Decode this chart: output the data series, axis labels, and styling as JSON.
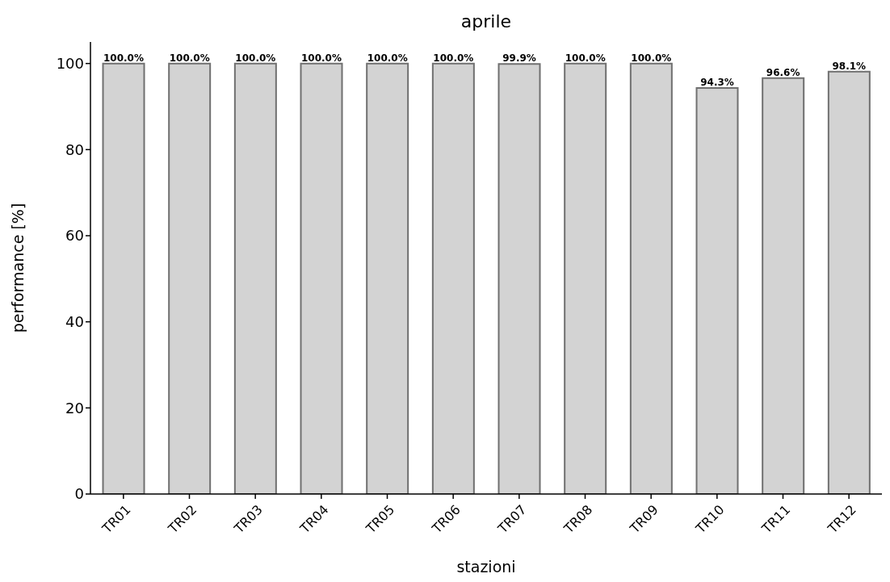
{
  "chart_data": {
    "type": "bar",
    "title": "aprile",
    "xlabel": "stazioni",
    "ylabel": "performance [%]",
    "categories": [
      "TR01",
      "TR02",
      "TR03",
      "TR04",
      "TR05",
      "TR06",
      "TR07",
      "TR08",
      "TR09",
      "TR10",
      "TR11",
      "TR12"
    ],
    "values": [
      100,
      100,
      100,
      100,
      100,
      100,
      99.9,
      100,
      100,
      94.3,
      96.6,
      98.1
    ],
    "value_labels": [
      "100.0%",
      "100.0%",
      "100.0%",
      "100.0%",
      "100.0%",
      "100.0%",
      "99.9%",
      "100.0%",
      "100.0%",
      "94.3%",
      "96.6%",
      "98.1%"
    ],
    "color": "#d3d3d3",
    "ylim": [
      0,
      105
    ],
    "yticks": [
      0,
      20,
      40,
      60,
      80,
      100
    ],
    "grid": false,
    "legend": false
  }
}
